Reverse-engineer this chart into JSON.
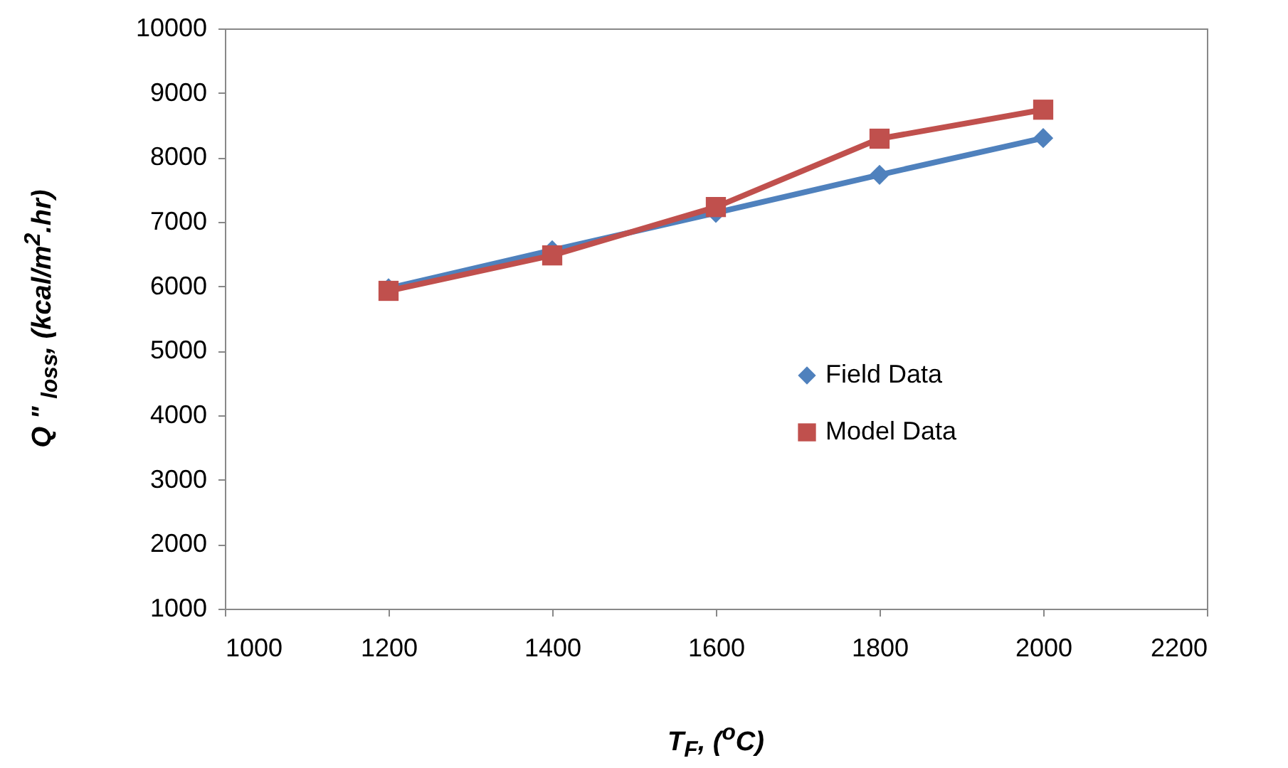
{
  "chart_data": {
    "type": "line",
    "xlabel": "T$_{F}$, ($^{o}$C)",
    "ylabel": "Q \" $_{loss}$, (kcal/m$^{2}$.hr)",
    "x": [
      1200,
      1400,
      1600,
      1800,
      2000
    ],
    "series": [
      {
        "name": "Field Data",
        "color": "#4f81bd",
        "marker": "diamond",
        "values": [
          5970,
          6560,
          7140,
          7730,
          8300
        ]
      },
      {
        "name": "Model Data",
        "color": "#c0504d",
        "marker": "square",
        "values": [
          5930,
          6480,
          7230,
          8290,
          8740
        ]
      }
    ],
    "xlim": [
      1000,
      2200
    ],
    "xticks": [
      1000,
      1200,
      1400,
      1600,
      1800,
      2000,
      2200
    ],
    "ylim": [
      1000,
      10000
    ],
    "yticks": [
      1000,
      2000,
      3000,
      4000,
      5000,
      6000,
      7000,
      8000,
      9000,
      10000
    ],
    "legend": "right",
    "grid": false,
    "line_style": "solid"
  }
}
